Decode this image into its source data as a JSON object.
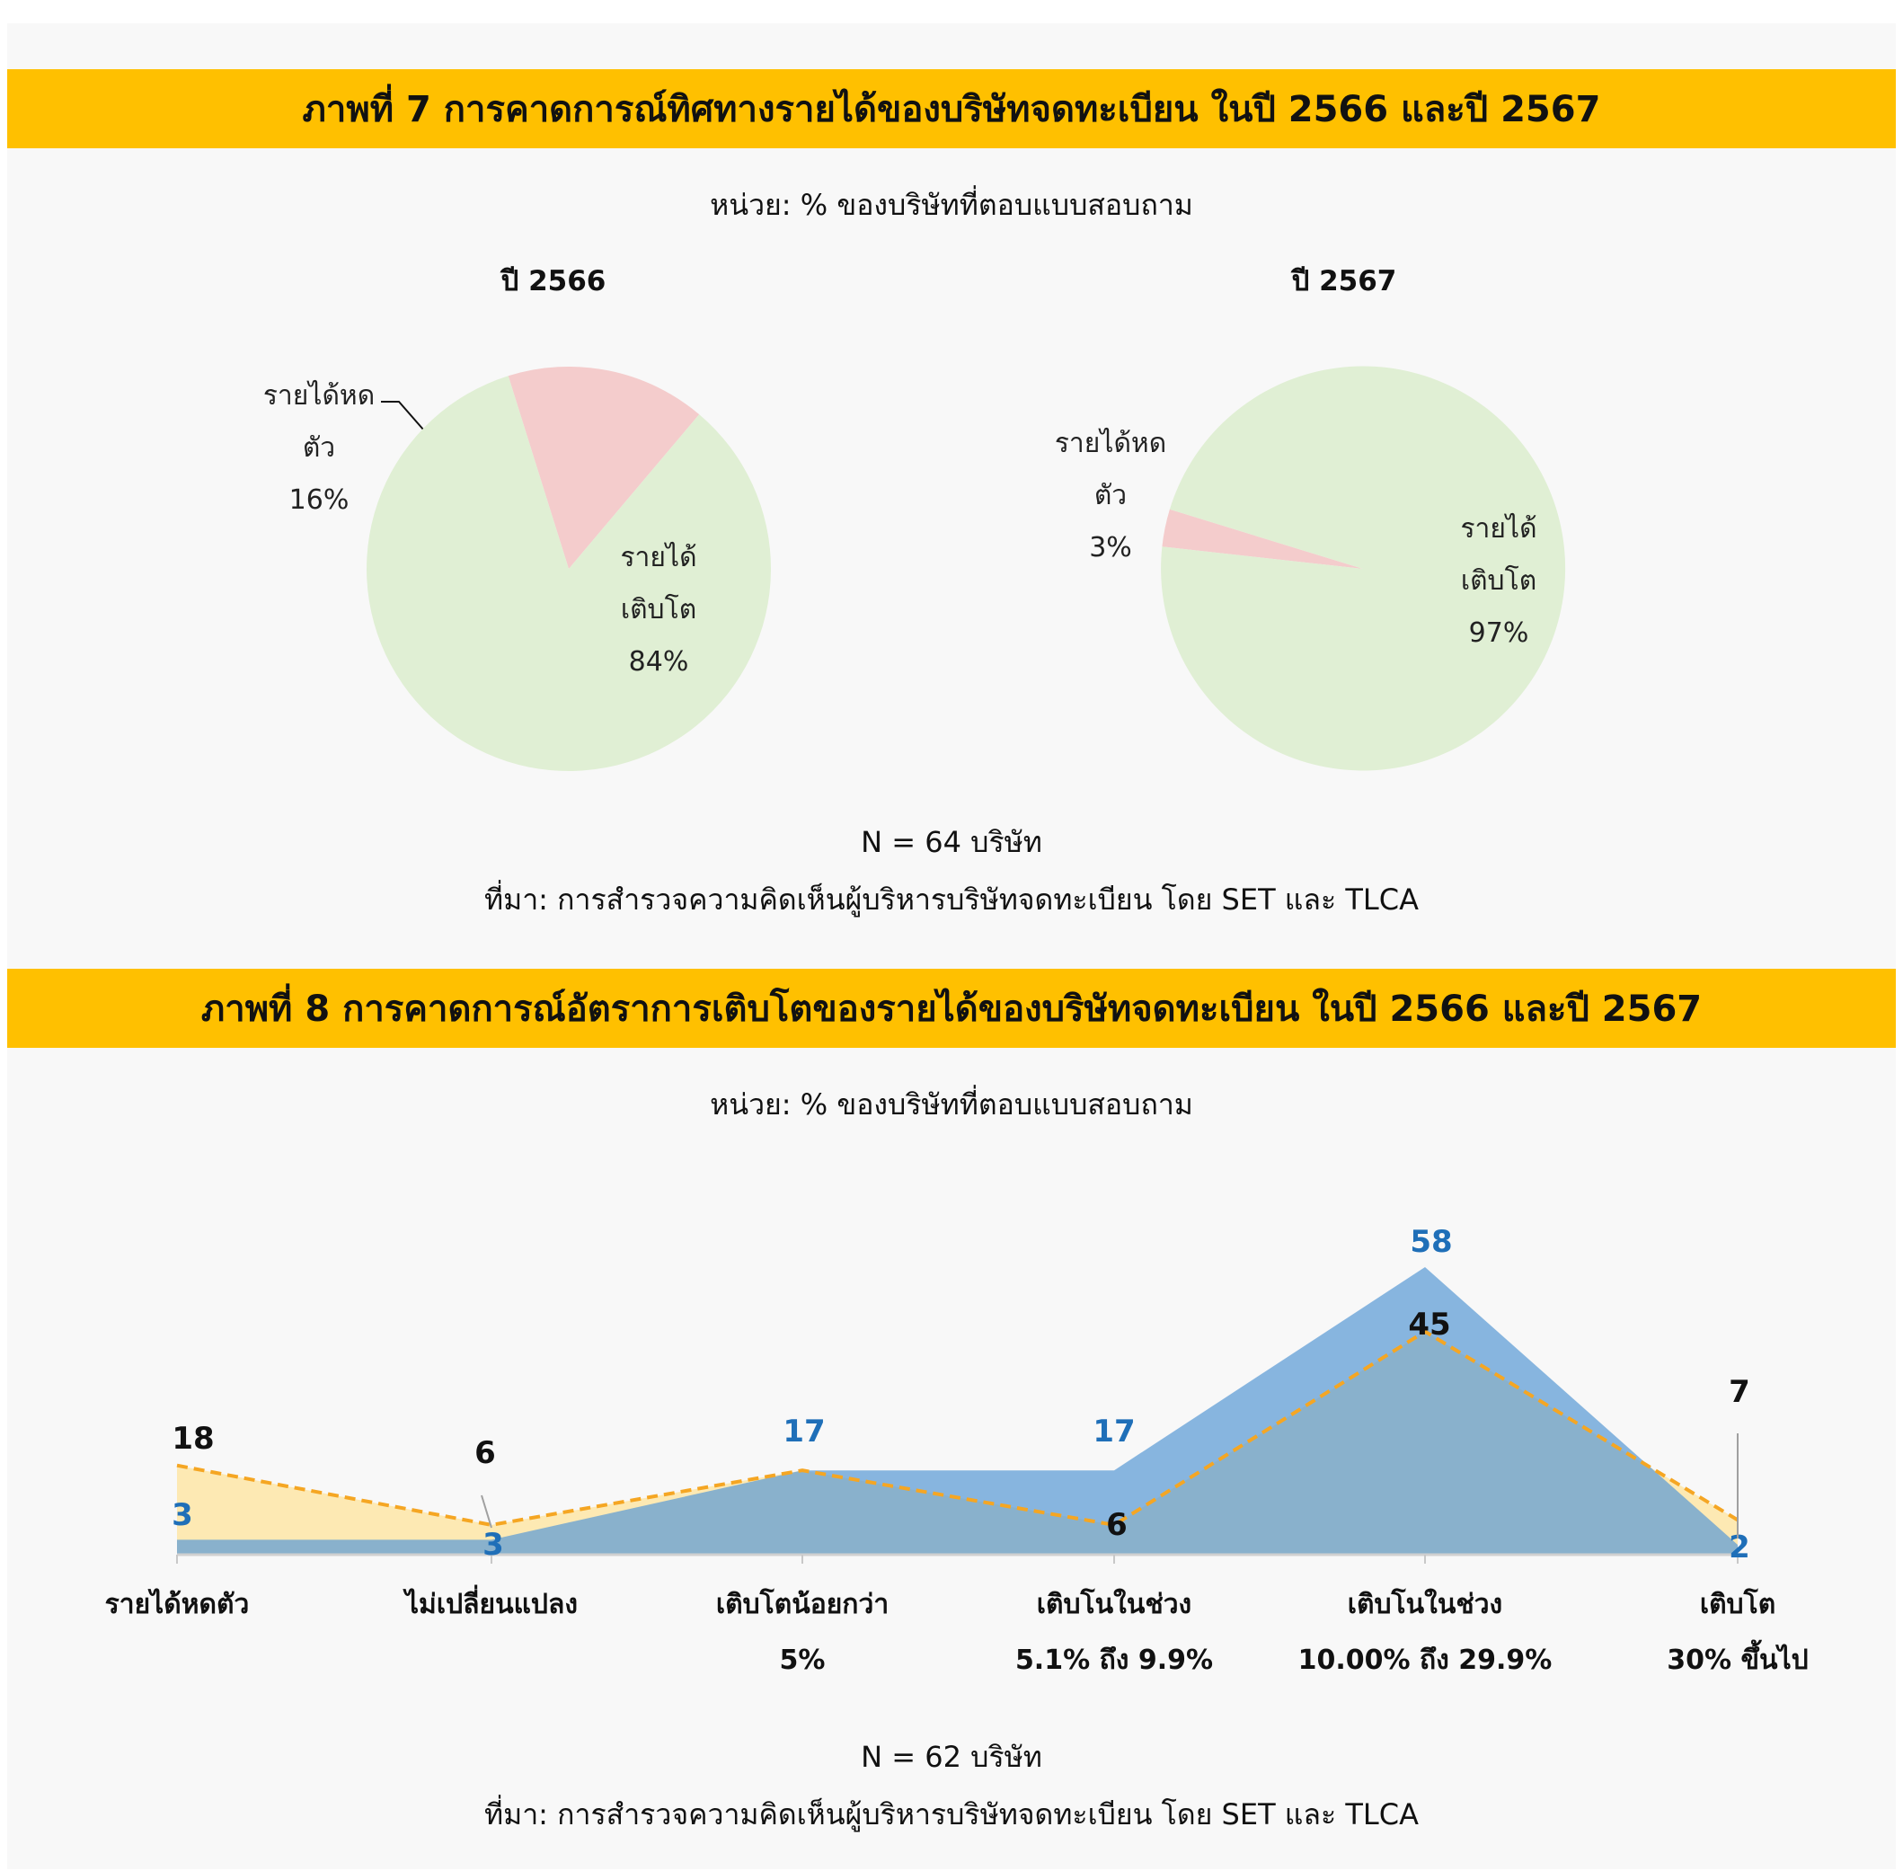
{
  "figure7": {
    "title": "ภาพที่ 7 การคาดการณ์ทิศทางรายได้ของบริษัทจดทะเบียน ในปี 2566 และปี 2567",
    "unit": "หน่วย: % ของบริษัทที่ตอบแบบสอบถาม",
    "n_label": "N = 64 บริษัท",
    "source": "ที่มา: การสำรวจความคิดเห็นผู้บริหารบริษัทจดทะเบียน โดย SET และ TLCA"
  },
  "figure8": {
    "title": "ภาพที่ 8 การคาดการณ์อัตราการเติบโตของรายได้ของบริษัทจดทะเบียน ในปี 2566 และปี 2567",
    "unit": "หน่วย: % ของบริษัทที่ตอบแบบสอบถาม",
    "n_label": "N = 62 บริษัท",
    "source": "ที่มา: การสำรวจความคิดเห็นผู้บริหารบริษัทจดทะเบียน โดย SET และ TLCA"
  },
  "chart_data": [
    {
      "type": "pie",
      "title": "ปี 2566",
      "slices": [
        {
          "label_lines": [
            "รายได้หด",
            "ตัว"
          ],
          "value": 16,
          "value_label": "16%",
          "color": "#f4cccc"
        },
        {
          "label_lines": [
            "รายได้",
            "เติบโต"
          ],
          "value": 84,
          "value_label": "84%",
          "color": "#e0efd4"
        }
      ]
    },
    {
      "type": "pie",
      "title": "ปี  2567",
      "slices": [
        {
          "label_lines": [
            "รายได้หด",
            "ตัว"
          ],
          "value": 3,
          "value_label": "3%",
          "color": "#f4cccc"
        },
        {
          "label_lines": [
            "รายได้",
            "เติบโต"
          ],
          "value": 97,
          "value_label": "97%",
          "color": "#e0efd4"
        }
      ]
    },
    {
      "type": "area",
      "categories": [
        [
          "รายได้หดตัว"
        ],
        [
          "ไม่เปลี่ยนแปลง"
        ],
        [
          "เติบโตน้อยกว่า",
          "5%"
        ],
        [
          "เติบโนในช่วง",
          "5.1%   ถึง 9.9%"
        ],
        [
          "เติบโนในช่วง",
          "10.00%   ถึง 29.9%"
        ],
        [
          "เติบโต",
          "30% ขึ้นไป"
        ]
      ],
      "series": [
        {
          "values": [
            3,
            3,
            17,
            17,
            58,
            2
          ],
          "color": "#5b9bd5",
          "label_color": "#1f6fb8",
          "style": "filled"
        },
        {
          "values": [
            18,
            6,
            17,
            6,
            45,
            7
          ],
          "color": "#f5a623",
          "label_color": "#111111",
          "style": "dashed-area"
        }
      ],
      "ylim": [
        0,
        65
      ],
      "grid": false,
      "legend": "none"
    }
  ]
}
